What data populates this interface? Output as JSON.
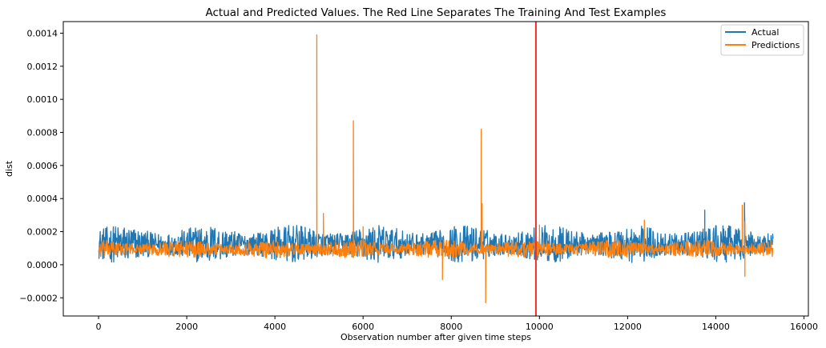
{
  "chart_data": {
    "type": "line",
    "title": "Actual and Predicted Values. The Red Line Separates The Training And Test Examples",
    "xlabel": "Observation number after given time steps",
    "ylabel": "dist",
    "xlim": [
      -800,
      16100
    ],
    "ylim": [
      -0.00031,
      0.00147
    ],
    "x_ticks": [
      0,
      2000,
      4000,
      6000,
      8000,
      10000,
      12000,
      14000,
      16000
    ],
    "y_ticks": [
      -0.0002,
      0.0,
      0.0002,
      0.0004,
      0.0006,
      0.0008,
      0.001,
      0.0012,
      0.0014
    ],
    "x_tick_labels": [
      "0",
      "2000",
      "4000",
      "6000",
      "8000",
      "10000",
      "12000",
      "14000",
      "16000"
    ],
    "y_tick_labels": [
      "−0.0002",
      "0.0000",
      "0.0002",
      "0.0004",
      "0.0006",
      "0.0008",
      "0.0010",
      "0.0012",
      "0.0014"
    ],
    "x_range": [
      0,
      15300
    ],
    "split_line_x": 9920,
    "split_line_color": "#e8312a",
    "legend_position": "upper-right",
    "series": [
      {
        "name": "Actual",
        "color": "#1f77b4",
        "band": [
          1e-05,
          0.00024
        ],
        "spikes": [
          [
            13750,
            0.00033
          ],
          [
            14650,
            0.000375
          ]
        ]
      },
      {
        "name": "Predictions",
        "color": "#ff7f0e",
        "band": [
          4e-05,
          0.00015
        ],
        "spikes": [
          [
            4950,
            0.00139
          ],
          [
            5100,
            0.00031
          ],
          [
            5780,
            0.00087
          ],
          [
            6000,
            0.00023
          ],
          [
            7800,
            -9e-05
          ],
          [
            8680,
            0.00082
          ],
          [
            8700,
            0.00037
          ],
          [
            8780,
            -0.00023
          ],
          [
            10000,
            0.00024
          ],
          [
            12380,
            0.00027
          ],
          [
            14600,
            0.00036
          ],
          [
            14660,
            0.00026
          ],
          [
            14660,
            -7e-05
          ]
        ]
      }
    ]
  }
}
